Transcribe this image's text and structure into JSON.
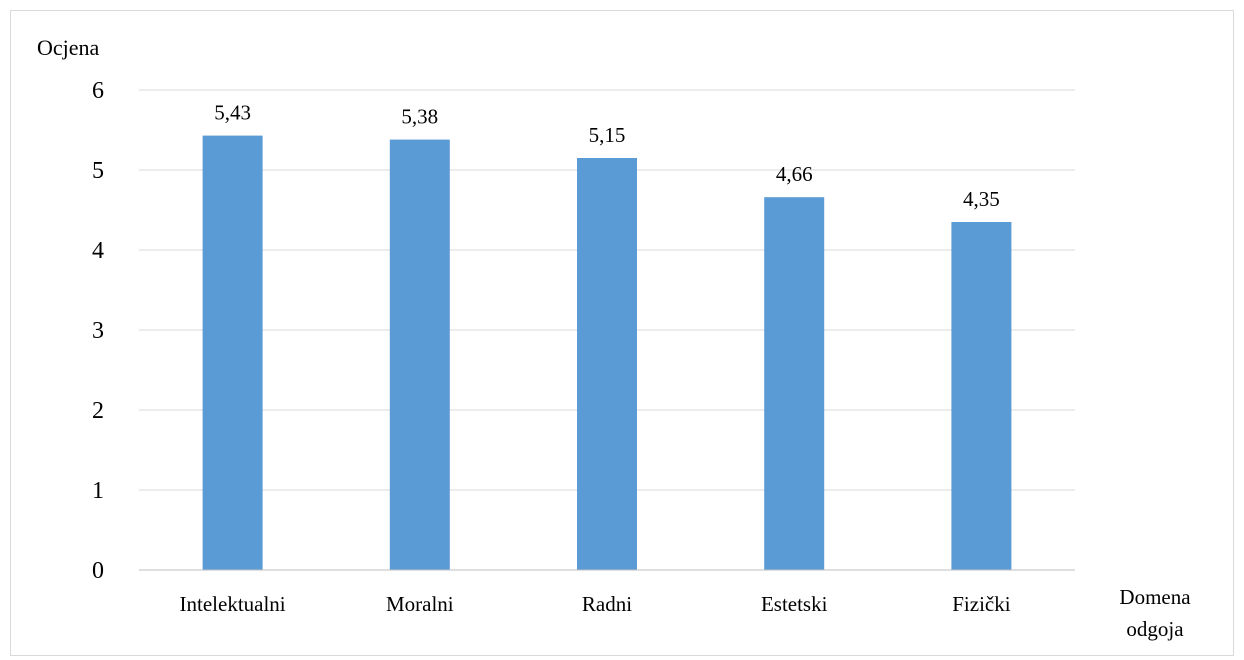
{
  "chart_data": {
    "type": "bar",
    "title": "",
    "ylabel": "Ocjena",
    "xlabel_lines": [
      "Domena",
      "odgoja"
    ],
    "categories": [
      "Intelektualni",
      "Moralni",
      "Radni",
      "Estetski",
      "Fizički"
    ],
    "values": [
      5.43,
      5.38,
      5.15,
      4.66,
      4.35
    ],
    "value_labels": [
      "5,43",
      "5,38",
      "5,15",
      "4,66",
      "4,35"
    ],
    "ylim": [
      0,
      6
    ],
    "yticks": [
      "0",
      "1",
      "2",
      "3",
      "4",
      "5",
      "6"
    ],
    "grid": true,
    "legend": "none",
    "colors": {
      "bar": "#5b9bd5",
      "grid": "#d9d9d9",
      "axis": "#bfbfbf"
    }
  }
}
